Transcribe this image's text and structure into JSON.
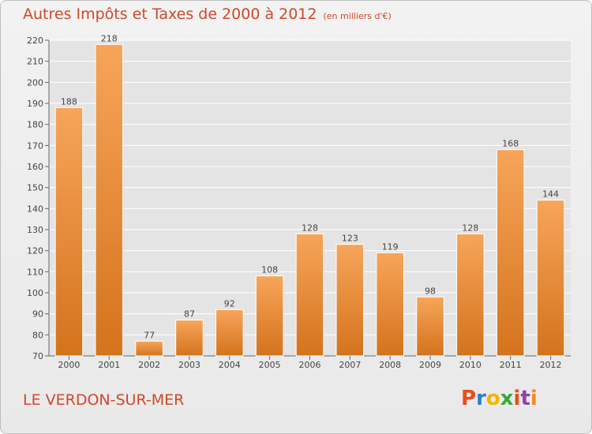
{
  "header": {
    "title": "Autres Impôts et Taxes de 2000 à 2012",
    "unit": "(en milliers d'€)"
  },
  "footer": {
    "commune": "LE VERDON-SUR-MER",
    "logo_letters": [
      "P",
      "r",
      "o",
      "x",
      "i",
      "t",
      "i"
    ],
    "logo_colors": [
      "#e84e1b",
      "#2b7fc3",
      "#f4b400",
      "#3aa935",
      "#e84e1b",
      "#8e44ad",
      "#f08a24"
    ]
  },
  "colors": {
    "bar_top": "#f7a55a",
    "bar_bottom": "#d4731c",
    "grid": "#ffffff",
    "text_accent": "#d2472a"
  },
  "chart_data": {
    "type": "bar",
    "categories": [
      "2000",
      "2001",
      "2002",
      "2003",
      "2004",
      "2005",
      "2006",
      "2007",
      "2008",
      "2009",
      "2010",
      "2011",
      "2012"
    ],
    "values": [
      188,
      218,
      77,
      87,
      92,
      108,
      128,
      123,
      119,
      98,
      128,
      168,
      144
    ],
    "yticks": [
      70,
      80,
      90,
      100,
      110,
      120,
      130,
      140,
      150,
      160,
      170,
      180,
      190,
      200,
      210,
      220
    ],
    "ylim": [
      70,
      220
    ],
    "grid": true,
    "title": "Autres Impôts et Taxes de 2000 à 2012",
    "xlabel": "",
    "ylabel": ""
  }
}
